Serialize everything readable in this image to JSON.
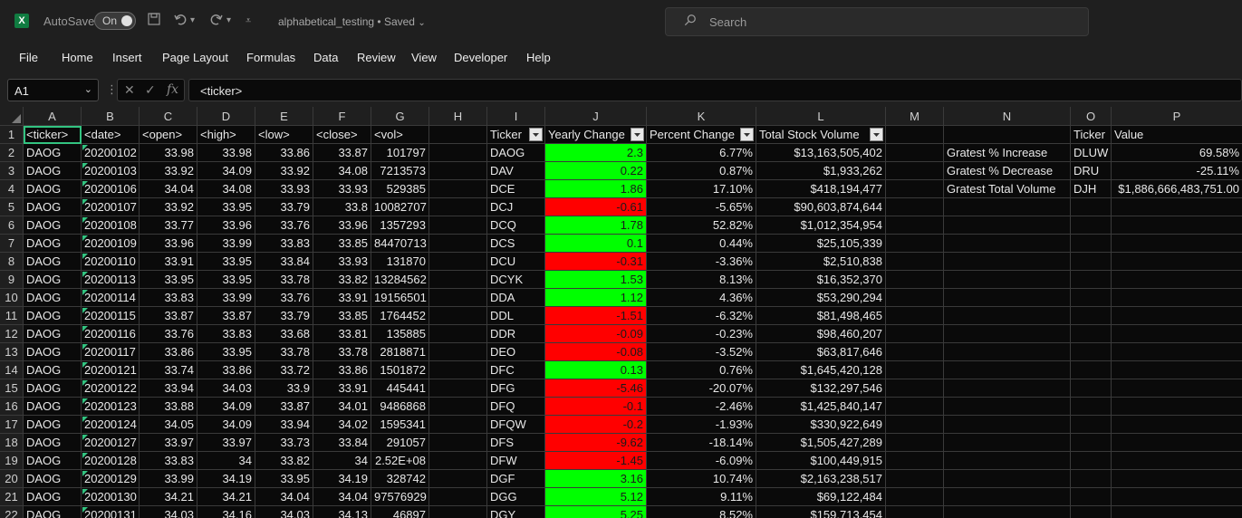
{
  "titlebar": {
    "app_icon": "excel-icon",
    "autosave_label": "AutoSave",
    "toggle_text": "On",
    "doc_name": "alphabetical_testing • Saved",
    "search_placeholder": "Search"
  },
  "menu": [
    "File",
    "Home",
    "Insert",
    "Page Layout",
    "Formulas",
    "Data",
    "Review",
    "View",
    "Developer",
    "Help"
  ],
  "formula_bar": {
    "name_box": "A1",
    "formula": "<ticker>"
  },
  "colors": {
    "positive_fill": "#00ff00",
    "negative_fill": "#ff0000",
    "selection": "#33c481"
  },
  "columns": [
    "A",
    "B",
    "C",
    "D",
    "E",
    "F",
    "G",
    "H",
    "I",
    "J",
    "K",
    "L",
    "M",
    "N",
    "O",
    "P"
  ],
  "rows": [
    [
      "<ticker>",
      "<date>",
      "<open>",
      "<high>",
      "<low>",
      "<close>",
      "<vol>",
      "",
      "Ticker",
      "Yearly Change",
      "Percent Change",
      "Total Stock Volume",
      "",
      "",
      "Ticker",
      "Value"
    ],
    [
      "DAOG",
      "20200102",
      "33.98",
      "33.98",
      "33.86",
      "33.87",
      "101797",
      "",
      "DAOG",
      "2.3",
      "6.77%",
      "$13,163,505,402",
      "",
      "Gratest % Increase",
      "DLUW",
      "69.58%"
    ],
    [
      "DAOG",
      "20200103",
      "33.92",
      "34.09",
      "33.92",
      "34.08",
      "7213573",
      "",
      "DAV",
      "0.22",
      "0.87%",
      "$1,933,262",
      "",
      "Gratest % Decrease",
      "DRU",
      "-25.11%"
    ],
    [
      "DAOG",
      "20200106",
      "34.04",
      "34.08",
      "33.93",
      "33.93",
      "529385",
      "",
      "DCE",
      "1.86",
      "17.10%",
      "$418,194,477",
      "",
      "Gratest Total Volume",
      "DJH",
      "$1,886,666,483,751.00"
    ],
    [
      "DAOG",
      "20200107",
      "33.92",
      "33.95",
      "33.79",
      "33.8",
      "10082707",
      "",
      "DCJ",
      "-0.61",
      "-5.65%",
      "$90,603,874,644",
      "",
      "",
      "",
      ""
    ],
    [
      "DAOG",
      "20200108",
      "33.77",
      "33.96",
      "33.76",
      "33.96",
      "1357293",
      "",
      "DCQ",
      "1.78",
      "52.82%",
      "$1,012,354,954",
      "",
      "",
      "",
      ""
    ],
    [
      "DAOG",
      "20200109",
      "33.96",
      "33.99",
      "33.83",
      "33.85",
      "84470713",
      "",
      "DCS",
      "0.1",
      "0.44%",
      "$25,105,339",
      "",
      "",
      "",
      ""
    ],
    [
      "DAOG",
      "20200110",
      "33.91",
      "33.95",
      "33.84",
      "33.93",
      "131870",
      "",
      "DCU",
      "-0.31",
      "-3.36%",
      "$2,510,838",
      "",
      "",
      "",
      ""
    ],
    [
      "DAOG",
      "20200113",
      "33.95",
      "33.95",
      "33.78",
      "33.82",
      "13284562",
      "",
      "DCYK",
      "1.53",
      "8.13%",
      "$16,352,370",
      "",
      "",
      "",
      ""
    ],
    [
      "DAOG",
      "20200114",
      "33.83",
      "33.99",
      "33.76",
      "33.91",
      "19156501",
      "",
      "DDA",
      "1.12",
      "4.36%",
      "$53,290,294",
      "",
      "",
      "",
      ""
    ],
    [
      "DAOG",
      "20200115",
      "33.87",
      "33.87",
      "33.79",
      "33.85",
      "1764452",
      "",
      "DDL",
      "-1.51",
      "-6.32%",
      "$81,498,465",
      "",
      "",
      "",
      ""
    ],
    [
      "DAOG",
      "20200116",
      "33.76",
      "33.83",
      "33.68",
      "33.81",
      "135885",
      "",
      "DDR",
      "-0.09",
      "-0.23%",
      "$98,460,207",
      "",
      "",
      "",
      ""
    ],
    [
      "DAOG",
      "20200117",
      "33.86",
      "33.95",
      "33.78",
      "33.78",
      "2818871",
      "",
      "DEO",
      "-0.08",
      "-3.52%",
      "$63,817,646",
      "",
      "",
      "",
      ""
    ],
    [
      "DAOG",
      "20200121",
      "33.74",
      "33.86",
      "33.72",
      "33.86",
      "1501872",
      "",
      "DFC",
      "0.13",
      "0.76%",
      "$1,645,420,128",
      "",
      "",
      "",
      ""
    ],
    [
      "DAOG",
      "20200122",
      "33.94",
      "34.03",
      "33.9",
      "33.91",
      "445441",
      "",
      "DFG",
      "-5.46",
      "-20.07%",
      "$132,297,546",
      "",
      "",
      "",
      ""
    ],
    [
      "DAOG",
      "20200123",
      "33.88",
      "34.09",
      "33.87",
      "34.01",
      "9486868",
      "",
      "DFQ",
      "-0.1",
      "-2.46%",
      "$1,425,840,147",
      "",
      "",
      "",
      ""
    ],
    [
      "DAOG",
      "20200124",
      "34.05",
      "34.09",
      "33.94",
      "34.02",
      "1595341",
      "",
      "DFQW",
      "-0.2",
      "-1.93%",
      "$330,922,649",
      "",
      "",
      "",
      ""
    ],
    [
      "DAOG",
      "20200127",
      "33.97",
      "33.97",
      "33.73",
      "33.84",
      "291057",
      "",
      "DFS",
      "-9.62",
      "-18.14%",
      "$1,505,427,289",
      "",
      "",
      "",
      ""
    ],
    [
      "DAOG",
      "20200128",
      "33.83",
      "34",
      "33.82",
      "34",
      "2.52E+08",
      "",
      "DFW",
      "-1.45",
      "-6.09%",
      "$100,449,915",
      "",
      "",
      "",
      ""
    ],
    [
      "DAOG",
      "20200129",
      "33.99",
      "34.19",
      "33.95",
      "34.19",
      "328742",
      "",
      "DGF",
      "3.16",
      "10.74%",
      "$2,163,238,517",
      "",
      "",
      "",
      ""
    ],
    [
      "DAOG",
      "20200130",
      "34.21",
      "34.21",
      "34.04",
      "34.04",
      "97576929",
      "",
      "DGG",
      "5.12",
      "9.11%",
      "$69,122,484",
      "",
      "",
      "",
      ""
    ],
    [
      "DAOG",
      "20200131",
      "34.03",
      "34.16",
      "34.03",
      "34.13",
      "46897",
      "",
      "DGY",
      "5.25",
      "8.52%",
      "$159,713,454",
      "",
      "",
      "",
      ""
    ]
  ]
}
